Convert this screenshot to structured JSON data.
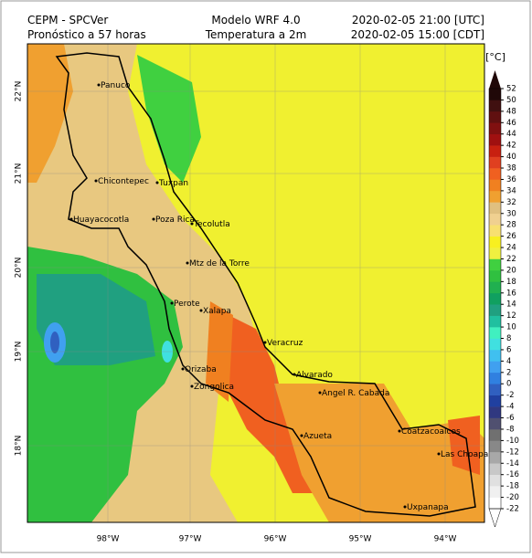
{
  "header": {
    "left": [
      "CEPM - SPCVer",
      "Pronóstico a 57 horas"
    ],
    "center": [
      "Modelo WRF 4.0",
      "Temperatura a 2m"
    ],
    "right": [
      "2020-02-05 21:00 [UTC]",
      "2020-02-05 15:00 [CDT]"
    ]
  },
  "map": {
    "lat_labels": [
      "22°N",
      "21°N",
      "20°N",
      "19°N",
      "18°N"
    ],
    "lon_labels": [
      "98°W",
      "97°W",
      "96°W",
      "95°W",
      "94°W"
    ],
    "cities": [
      "Panuco",
      "Tuxpan",
      "Chicontepec",
      "Huayacocotla",
      "Poza Rica",
      "Tecolutla",
      "Mtz de la Torre",
      "Perote",
      "Xalapa",
      "Veracruz",
      "Orizaba",
      "Alvarado",
      "Zongolica",
      "Angel R. Cabada",
      "Azueta",
      "Coatzacoalcos",
      "Las Choapas",
      "Uxpanapa"
    ]
  },
  "colorbar": {
    "unit": "[°C]",
    "ticks": [
      -22,
      -20,
      -18,
      -16,
      -14,
      -12,
      -10,
      -8,
      -6,
      -4,
      -2,
      0,
      2,
      4,
      6,
      8,
      10,
      12,
      14,
      16,
      18,
      20,
      22,
      24,
      26,
      28,
      30,
      32,
      34,
      36,
      38,
      40,
      42,
      44,
      46,
      48,
      50,
      52
    ],
    "colors": [
      "#ffffff",
      "#f0f0f0",
      "#e0e0e0",
      "#c8c8c8",
      "#a8a8a8",
      "#888888",
      "#707070",
      "#505070",
      "#303880",
      "#2040a0",
      "#3060c0",
      "#3080e0",
      "#40a0f0",
      "#40c0f0",
      "#40e0e0",
      "#40f0c0",
      "#20c0a0",
      "#20a080",
      "#10a060",
      "#20b050",
      "#30c040",
      "#40d040",
      "#f0f040",
      "#f8f020",
      "#f8e070",
      "#f0d090",
      "#e0c080",
      "#f0a030",
      "#f08020",
      "#f06020",
      "#e04020",
      "#c82010",
      "#a01010",
      "#801010",
      "#601010",
      "#401010",
      "#200808"
    ]
  }
}
